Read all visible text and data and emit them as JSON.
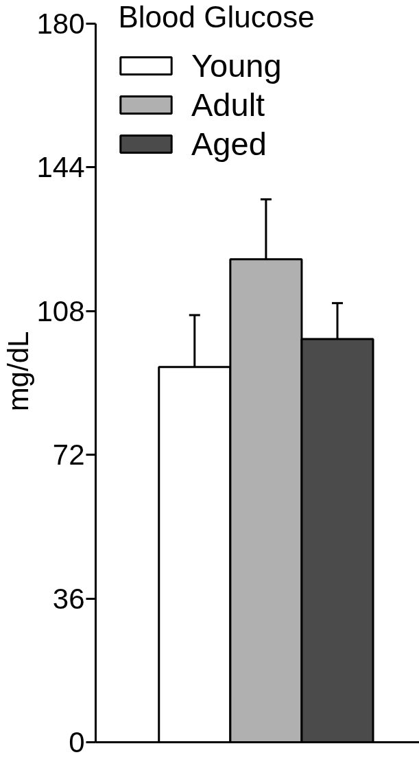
{
  "chart_data": {
    "type": "bar",
    "title": "Blood Glucose",
    "ylabel": "mg/dL",
    "categories": [
      null
    ],
    "series": [
      {
        "name": "Young",
        "color": "#ffffff",
        "values": [
          94
        ],
        "errors": [
          [
            94,
            107
          ]
        ]
      },
      {
        "name": "Adult",
        "color": "#b0b0b0",
        "values": [
          121
        ],
        "errors": [
          [
            121,
            136
          ]
        ]
      },
      {
        "name": "Aged",
        "color": "#4b4b4b",
        "values": [
          101
        ],
        "errors": [
          [
            101,
            110
          ]
        ]
      }
    ],
    "ylim": [
      0,
      180
    ],
    "yticks": [
      0,
      36,
      72,
      108,
      144,
      180
    ],
    "grid": false,
    "legend": "top left"
  }
}
